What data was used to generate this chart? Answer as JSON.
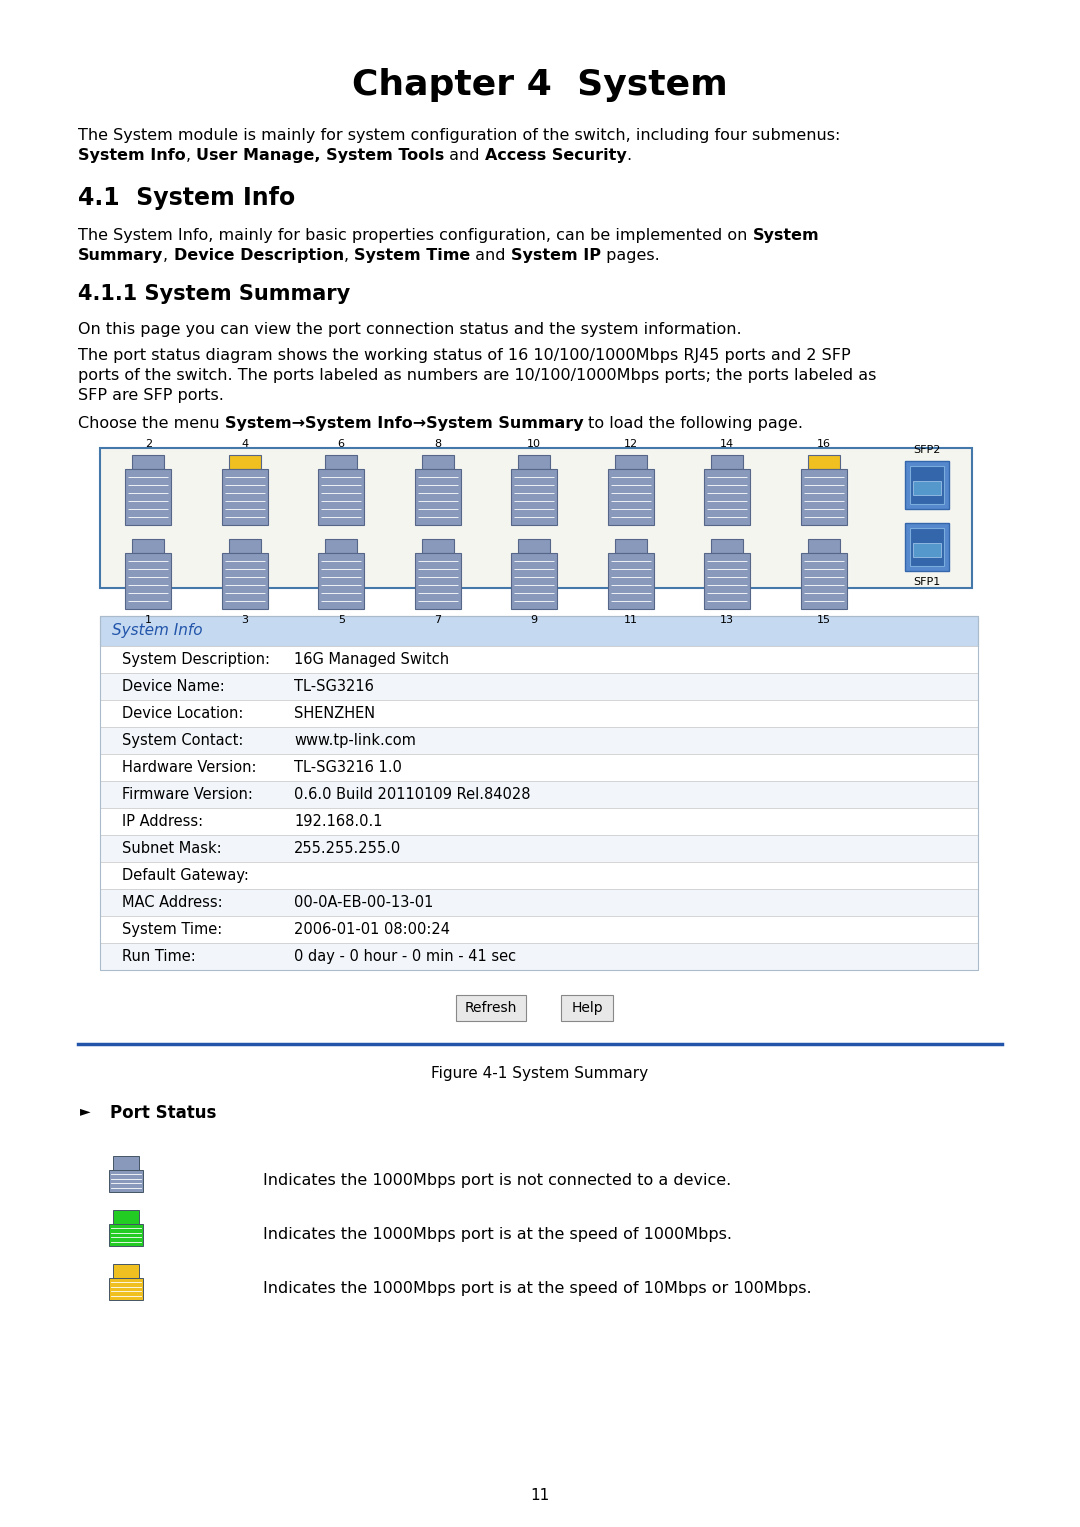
{
  "title": "Chapter 4  System",
  "bg_color": "#ffffff",
  "text_color": "#000000",
  "table_header": "System Info",
  "table_header_bg": "#c5d9f1",
  "table_border": "#cccccc",
  "table_rows": [
    [
      "System Description:",
      "16G Managed Switch"
    ],
    [
      "Device Name:",
      "TL-SG3216"
    ],
    [
      "Device Location:",
      "SHENZHEN"
    ],
    [
      "System Contact:",
      "www.tp-link.com"
    ],
    [
      "Hardware Version:",
      "TL-SG3216 1.0"
    ],
    [
      "Firmware Version:",
      "0.6.0 Build 20110109 Rel.84028"
    ],
    [
      "IP Address:",
      "192.168.0.1"
    ],
    [
      "Subnet Mask:",
      "255.255.255.0"
    ],
    [
      "Default Gateway:",
      ""
    ],
    [
      "MAC Address:",
      "00-0A-EB-00-13-01"
    ],
    [
      "System Time:",
      "2006-01-01 08:00:24"
    ],
    [
      "Run Time:",
      "0 day - 0 hour - 0 min - 41 sec"
    ]
  ],
  "figure_caption": "Figure 4-1 System Summary",
  "port_status_title": "Port Status",
  "port_status_items": [
    "Indicates the 1000Mbps port is not connected to a device.",
    "Indicates the 1000Mbps port is at the speed of 1000Mbps.",
    "Indicates the 1000Mbps port is at the speed of 10Mbps or 100Mbps."
  ],
  "page_number": "11"
}
